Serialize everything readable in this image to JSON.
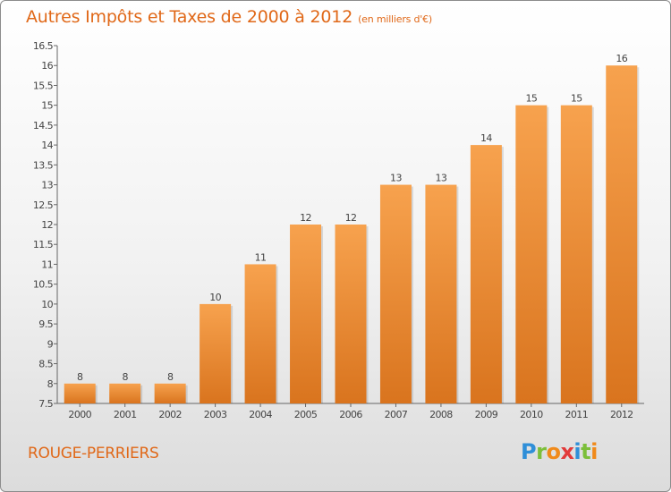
{
  "title": "Autres Impôts et Taxes de 2000 à 2012",
  "subtitle": "(en milliers d'€)",
  "town": "ROUGE-PERRIERS",
  "logo": {
    "letters": [
      "P",
      "r",
      "o",
      "x",
      "i",
      "t",
      "i"
    ],
    "colors": [
      "#2f8fd8",
      "#7cbf3a",
      "#f08a1a",
      "#e23a3a",
      "#2f8fd8",
      "#7cbf3a",
      "#f08a1a"
    ]
  },
  "colors": {
    "accent": "#e06818",
    "bar_top": "#f7a24e",
    "bar_bottom": "#d9741e",
    "axis": "#666666"
  },
  "chart_data": {
    "type": "bar",
    "title": "Autres Impôts et Taxes de 2000 à 2012",
    "subtitle": "(en milliers d'€)",
    "categories": [
      "2000",
      "2001",
      "2002",
      "2003",
      "2004",
      "2005",
      "2006",
      "2007",
      "2008",
      "2009",
      "2010",
      "2011",
      "2012"
    ],
    "values": [
      8,
      8,
      8,
      10,
      11,
      12,
      12,
      13,
      13,
      14,
      15,
      15,
      16
    ],
    "ylim": [
      7.5,
      16.5
    ],
    "yticks": [
      "7.5",
      "8",
      "8.5",
      "9",
      "9.5",
      "10",
      "10.5",
      "11",
      "11.5",
      "12",
      "12.5",
      "13",
      "13.5",
      "14",
      "14.5",
      "15",
      "15.5",
      "16",
      "16.5"
    ],
    "grid": false,
    "legend": "none",
    "data_labels": true
  }
}
